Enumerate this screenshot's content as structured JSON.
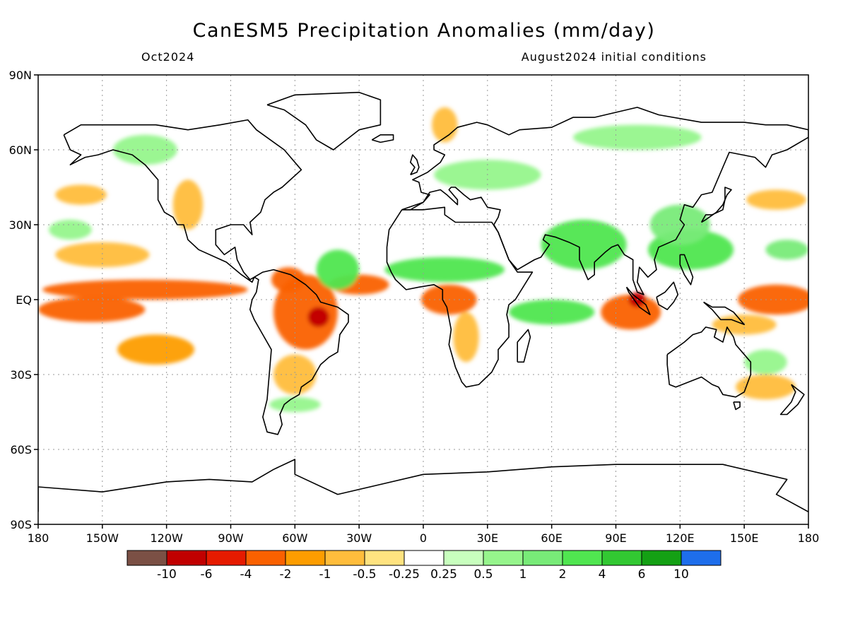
{
  "header": {
    "title": "CanESM5 Precipitation Anomalies (mm/day)",
    "valid_month": "Oct2024",
    "initial_conditions": "August2024 initial conditions"
  },
  "map": {
    "lon_range": [
      -180,
      180
    ],
    "lat_range": [
      -90,
      90
    ],
    "grid": true,
    "lat_ticks": [
      {
        "value": 90,
        "label": "90N"
      },
      {
        "value": 60,
        "label": "60N"
      },
      {
        "value": 30,
        "label": "30N"
      },
      {
        "value": 0,
        "label": "EQ"
      },
      {
        "value": -30,
        "label": "30S"
      },
      {
        "value": -60,
        "label": "60S"
      },
      {
        "value": -90,
        "label": "90S"
      }
    ],
    "lon_ticks": [
      {
        "value": -180,
        "label": "180"
      },
      {
        "value": -150,
        "label": "150W"
      },
      {
        "value": -120,
        "label": "120W"
      },
      {
        "value": -90,
        "label": "90W"
      },
      {
        "value": -60,
        "label": "60W"
      },
      {
        "value": -30,
        "label": "30W"
      },
      {
        "value": 0,
        "label": "0"
      },
      {
        "value": 30,
        "label": "30E"
      },
      {
        "value": 60,
        "label": "60E"
      },
      {
        "value": 90,
        "label": "90E"
      },
      {
        "value": 120,
        "label": "120E"
      },
      {
        "value": 150,
        "label": "150E"
      },
      {
        "value": 180,
        "label": "180"
      }
    ]
  },
  "colorbar": {
    "colors": [
      "#7b5045",
      "#c10000",
      "#e61b00",
      "#fa6100",
      "#fd9d00",
      "#ffbd3c",
      "#ffe380",
      "#ffffff",
      "#c8ffbe",
      "#96f58c",
      "#78eb78",
      "#50e650",
      "#32c832",
      "#14a014",
      "#1e6eeb"
    ],
    "labels": [
      "-10",
      "-6",
      "-4",
      "-2",
      "-1",
      "-0.5",
      "-0.25",
      "0.25",
      "0.5",
      "1",
      "2",
      "4",
      "6",
      "10"
    ]
  },
  "anomalies": [
    {
      "lon": -130,
      "lat": 4,
      "rx": 48,
      "ry": 4,
      "color": "#fa6100"
    },
    {
      "lon": -155,
      "lat": -4,
      "rx": 25,
      "ry": 5,
      "color": "#fa6100"
    },
    {
      "lon": -125,
      "lat": -20,
      "rx": 18,
      "ry": 6,
      "color": "#fd9d00"
    },
    {
      "lon": -150,
      "lat": 18,
      "rx": 22,
      "ry": 5,
      "color": "#ffbd3c"
    },
    {
      "lon": -160,
      "lat": 42,
      "rx": 12,
      "ry": 4,
      "color": "#ffbd3c"
    },
    {
      "lon": -55,
      "lat": -5,
      "rx": 15,
      "ry": 15,
      "color": "#fa6100"
    },
    {
      "lon": -49,
      "lat": -7,
      "rx": 5,
      "ry": 4,
      "color": "#c10000"
    },
    {
      "lon": -63,
      "lat": 8,
      "rx": 8,
      "ry": 5,
      "color": "#fa6100"
    },
    {
      "lon": -60,
      "lat": -30,
      "rx": 10,
      "ry": 8,
      "color": "#ffbd3c"
    },
    {
      "lon": -30,
      "lat": 6,
      "rx": 14,
      "ry": 4,
      "color": "#fa6100"
    },
    {
      "lon": -110,
      "lat": 38,
      "rx": 7,
      "ry": 10,
      "color": "#ffbd3c"
    },
    {
      "lon": 12,
      "lat": 0,
      "rx": 13,
      "ry": 6,
      "color": "#fa6100"
    },
    {
      "lon": 20,
      "lat": -15,
      "rx": 6,
      "ry": 10,
      "color": "#ffbd3c"
    },
    {
      "lon": 97,
      "lat": -5,
      "rx": 14,
      "ry": 7,
      "color": "#fa6100"
    },
    {
      "lon": 100,
      "lat": 0,
      "rx": 4,
      "ry": 3,
      "color": "#c10000"
    },
    {
      "lon": 165,
      "lat": 0,
      "rx": 18,
      "ry": 6,
      "color": "#fa6100"
    },
    {
      "lon": 150,
      "lat": -10,
      "rx": 15,
      "ry": 4,
      "color": "#ffbd3c"
    },
    {
      "lon": 160,
      "lat": -35,
      "rx": 14,
      "ry": 5,
      "color": "#ffbd3c"
    },
    {
      "lon": 165,
      "lat": 40,
      "rx": 14,
      "ry": 4,
      "color": "#ffbd3c"
    },
    {
      "lon": 10,
      "lat": 70,
      "rx": 6,
      "ry": 7,
      "color": "#ffbd3c"
    },
    {
      "lon": -40,
      "lat": 12,
      "rx": 10,
      "ry": 8,
      "color": "#50e650"
    },
    {
      "lon": 10,
      "lat": 12,
      "rx": 28,
      "ry": 5,
      "color": "#50e650"
    },
    {
      "lon": 75,
      "lat": 22,
      "rx": 20,
      "ry": 10,
      "color": "#50e650"
    },
    {
      "lon": 60,
      "lat": -5,
      "rx": 20,
      "ry": 5,
      "color": "#50e650"
    },
    {
      "lon": 125,
      "lat": 20,
      "rx": 20,
      "ry": 8,
      "color": "#50e650"
    },
    {
      "lon": 120,
      "lat": 30,
      "rx": 14,
      "ry": 8,
      "color": "#78eb78"
    },
    {
      "lon": 170,
      "lat": 20,
      "rx": 10,
      "ry": 4,
      "color": "#78eb78"
    },
    {
      "lon": -165,
      "lat": 28,
      "rx": 10,
      "ry": 4,
      "color": "#96f58c"
    },
    {
      "lon": 30,
      "lat": 50,
      "rx": 25,
      "ry": 6,
      "color": "#96f58c"
    },
    {
      "lon": 100,
      "lat": 65,
      "rx": 30,
      "ry": 5,
      "color": "#96f58c"
    },
    {
      "lon": -130,
      "lat": 60,
      "rx": 15,
      "ry": 6,
      "color": "#96f58c"
    },
    {
      "lon": 160,
      "lat": -25,
      "rx": 10,
      "ry": 5,
      "color": "#96f58c"
    },
    {
      "lon": -60,
      "lat": -42,
      "rx": 12,
      "ry": 3,
      "color": "#96f58c"
    }
  ],
  "coastlines": [
    [
      [
        -168,
        66
      ],
      [
        -160,
        70
      ],
      [
        -140,
        70
      ],
      [
        -125,
        70
      ],
      [
        -110,
        68
      ],
      [
        -95,
        70
      ],
      [
        -82,
        72
      ],
      [
        -78,
        68
      ],
      [
        -65,
        60
      ],
      [
        -60,
        55
      ],
      [
        -57,
        52
      ],
      [
        -66,
        45
      ],
      [
        -70,
        43
      ],
      [
        -74,
        40
      ],
      [
        -76,
        35
      ],
      [
        -81,
        31
      ],
      [
        -80,
        26
      ],
      [
        -82,
        28
      ],
      [
        -84,
        30
      ],
      [
        -90,
        30
      ],
      [
        -97,
        28
      ],
      [
        -97,
        22
      ],
      [
        -93,
        18
      ],
      [
        -88,
        21
      ],
      [
        -87,
        16
      ],
      [
        -84,
        11
      ],
      [
        -81,
        8
      ],
      [
        -79,
        9
      ],
      [
        -80,
        7
      ],
      [
        -85,
        10
      ],
      [
        -92,
        15
      ],
      [
        -105,
        20
      ],
      [
        -110,
        24
      ],
      [
        -112,
        30
      ],
      [
        -115,
        30
      ],
      [
        -117,
        33
      ],
      [
        -121,
        35
      ],
      [
        -124,
        40
      ],
      [
        -124,
        48
      ],
      [
        -130,
        54
      ],
      [
        -136,
        58
      ],
      [
        -145,
        60
      ],
      [
        -152,
        58
      ],
      [
        -158,
        57
      ],
      [
        -165,
        54
      ],
      [
        -160,
        58
      ],
      [
        -165,
        60
      ],
      [
        -168,
        66
      ]
    ],
    [
      [
        -79,
        9
      ],
      [
        -75,
        11
      ],
      [
        -70,
        12
      ],
      [
        -62,
        10
      ],
      [
        -55,
        6
      ],
      [
        -50,
        2
      ],
      [
        -48,
        -1
      ],
      [
        -40,
        -3
      ],
      [
        -35,
        -6
      ],
      [
        -35,
        -9
      ],
      [
        -39,
        -14
      ],
      [
        -40,
        -21
      ],
      [
        -44,
        -23
      ],
      [
        -48,
        -26
      ],
      [
        -52,
        -32
      ],
      [
        -57,
        -35
      ],
      [
        -58,
        -38
      ],
      [
        -62,
        -40
      ],
      [
        -65,
        -42
      ],
      [
        -67,
        -46
      ],
      [
        -66,
        -50
      ],
      [
        -68,
        -54
      ],
      [
        -73,
        -53
      ],
      [
        -75,
        -47
      ],
      [
        -73,
        -40
      ],
      [
        -72,
        -30
      ],
      [
        -71,
        -20
      ],
      [
        -75,
        -14
      ],
      [
        -79,
        -8
      ],
      [
        -81,
        -4
      ],
      [
        -80,
        0
      ],
      [
        -78,
        3
      ],
      [
        -77,
        8
      ],
      [
        -79,
        9
      ]
    ],
    [
      [
        -10,
        36
      ],
      [
        -6,
        36
      ],
      [
        0,
        39
      ],
      [
        3,
        42
      ],
      [
        -1,
        43
      ],
      [
        -2,
        47
      ],
      [
        -5,
        48
      ],
      [
        2,
        51
      ],
      [
        5,
        53
      ],
      [
        8,
        55
      ],
      [
        10,
        58
      ],
      [
        5,
        60
      ],
      [
        5,
        62
      ],
      [
        12,
        66
      ],
      [
        16,
        69
      ],
      [
        25,
        71
      ],
      [
        30,
        70
      ],
      [
        40,
        66
      ],
      [
        45,
        68
      ],
      [
        60,
        69
      ],
      [
        70,
        73
      ],
      [
        80,
        73
      ],
      [
        100,
        77
      ],
      [
        110,
        74
      ],
      [
        130,
        71
      ],
      [
        150,
        71
      ],
      [
        160,
        70
      ],
      [
        170,
        70
      ],
      [
        180,
        68
      ],
      [
        180,
        65
      ],
      [
        170,
        60
      ],
      [
        163,
        58
      ],
      [
        160,
        53
      ],
      [
        155,
        57
      ],
      [
        143,
        59
      ],
      [
        140,
        53
      ],
      [
        135,
        43
      ],
      [
        130,
        42
      ],
      [
        126,
        37
      ],
      [
        122,
        38
      ],
      [
        120,
        32
      ],
      [
        122,
        30
      ],
      [
        118,
        24
      ],
      [
        110,
        21
      ],
      [
        108,
        16
      ],
      [
        109,
        12
      ],
      [
        105,
        9
      ],
      [
        101,
        13
      ],
      [
        100,
        7
      ],
      [
        103,
        2
      ],
      [
        100,
        3
      ],
      [
        98,
        8
      ],
      [
        98,
        16
      ],
      [
        94,
        18
      ],
      [
        91,
        22
      ],
      [
        88,
        21
      ],
      [
        85,
        19
      ],
      [
        80,
        15
      ],
      [
        80,
        10
      ],
      [
        77,
        8
      ],
      [
        73,
        16
      ],
      [
        73,
        21
      ],
      [
        68,
        23
      ],
      [
        62,
        25
      ],
      [
        57,
        26
      ],
      [
        56,
        24
      ],
      [
        59,
        22
      ],
      [
        55,
        17
      ],
      [
        52,
        16
      ],
      [
        44,
        12
      ],
      [
        40,
        16
      ],
      [
        35,
        27
      ],
      [
        33,
        30
      ],
      [
        35,
        33
      ],
      [
        36,
        36
      ],
      [
        30,
        37
      ],
      [
        27,
        41
      ],
      [
        22,
        40
      ],
      [
        19,
        42
      ],
      [
        15,
        45
      ],
      [
        13,
        45
      ],
      [
        12,
        44
      ],
      [
        16,
        40
      ],
      [
        16,
        38
      ],
      [
        11,
        42
      ],
      [
        8,
        44
      ],
      [
        3,
        43
      ],
      [
        0,
        39
      ],
      [
        -10,
        36
      ]
    ],
    [
      [
        -10,
        36
      ],
      [
        -16,
        28
      ],
      [
        -17,
        21
      ],
      [
        -17,
        15
      ],
      [
        -15,
        11
      ],
      [
        -13,
        8
      ],
      [
        -8,
        4
      ],
      [
        -2,
        5
      ],
      [
        5,
        6
      ],
      [
        9,
        4
      ],
      [
        9,
        0
      ],
      [
        11,
        -3
      ],
      [
        13,
        -12
      ],
      [
        12,
        -18
      ],
      [
        15,
        -27
      ],
      [
        18,
        -33
      ],
      [
        20,
        -35
      ],
      [
        26,
        -34
      ],
      [
        32,
        -29
      ],
      [
        35,
        -24
      ],
      [
        35,
        -20
      ],
      [
        40,
        -15
      ],
      [
        40,
        -10
      ],
      [
        39,
        -6
      ],
      [
        40,
        -2
      ],
      [
        43,
        0
      ],
      [
        51,
        11
      ],
      [
        44,
        11
      ],
      [
        40,
        16
      ],
      [
        35,
        27
      ],
      [
        32,
        31
      ],
      [
        29,
        31
      ],
      [
        20,
        31
      ],
      [
        15,
        31
      ],
      [
        10,
        34
      ],
      [
        10,
        37
      ],
      [
        0,
        36
      ],
      [
        -10,
        36
      ]
    ],
    [
      [
        114,
        -22
      ],
      [
        114,
        -26
      ],
      [
        115,
        -34
      ],
      [
        118,
        -35
      ],
      [
        124,
        -33
      ],
      [
        130,
        -31
      ],
      [
        135,
        -34
      ],
      [
        138,
        -35
      ],
      [
        140,
        -38
      ],
      [
        146,
        -39
      ],
      [
        150,
        -37
      ],
      [
        153,
        -30
      ],
      [
        153,
        -25
      ],
      [
        150,
        -22
      ],
      [
        146,
        -18
      ],
      [
        145,
        -15
      ],
      [
        142,
        -11
      ],
      [
        140,
        -17
      ],
      [
        136,
        -15
      ],
      [
        137,
        -12
      ],
      [
        132,
        -11
      ],
      [
        130,
        -13
      ],
      [
        126,
        -14
      ],
      [
        122,
        -17
      ],
      [
        114,
        -22
      ]
    ],
    [
      [
        -180,
        -85
      ],
      [
        -180,
        -75
      ],
      [
        -150,
        -77
      ],
      [
        -120,
        -73
      ],
      [
        -100,
        -72
      ],
      [
        -80,
        -73
      ],
      [
        -70,
        -68
      ],
      [
        -60,
        -64
      ],
      [
        -60,
        -70
      ],
      [
        -40,
        -78
      ],
      [
        -20,
        -74
      ],
      [
        0,
        -70
      ],
      [
        30,
        -69
      ],
      [
        60,
        -67
      ],
      [
        90,
        -66
      ],
      [
        120,
        -66
      ],
      [
        140,
        -66
      ],
      [
        160,
        -70
      ],
      [
        170,
        -72
      ],
      [
        165,
        -78
      ],
      [
        180,
        -85
      ]
    ],
    [
      [
        -73,
        78
      ],
      [
        -60,
        82
      ],
      [
        -30,
        83
      ],
      [
        -20,
        80
      ],
      [
        -20,
        70
      ],
      [
        -30,
        68
      ],
      [
        -42,
        60
      ],
      [
        -50,
        64
      ],
      [
        -55,
        70
      ],
      [
        -65,
        76
      ],
      [
        -73,
        78
      ]
    ],
    [
      [
        -6,
        50
      ],
      [
        -3,
        51
      ],
      [
        -2,
        53
      ],
      [
        -3,
        56
      ],
      [
        -5,
        58
      ],
      [
        -6,
        55
      ],
      [
        -4,
        53
      ],
      [
        -6,
        50
      ]
    ],
    [
      [
        130,
        31
      ],
      [
        132,
        34
      ],
      [
        135,
        34
      ],
      [
        140,
        36
      ],
      [
        141,
        40
      ],
      [
        141,
        45
      ],
      [
        144,
        44
      ],
      [
        142,
        42
      ],
      [
        140,
        38
      ],
      [
        137,
        35
      ],
      [
        132,
        32
      ],
      [
        130,
        31
      ]
    ],
    [
      [
        131,
        -1
      ],
      [
        135,
        -3
      ],
      [
        141,
        -3
      ],
      [
        145,
        -5
      ],
      [
        150,
        -10
      ],
      [
        144,
        -8
      ],
      [
        139,
        -8
      ],
      [
        135,
        -4
      ],
      [
        131,
        -1
      ]
    ],
    [
      [
        109,
        1
      ],
      [
        110,
        -2
      ],
      [
        114,
        -4
      ],
      [
        117,
        -1
      ],
      [
        119,
        2
      ],
      [
        117,
        7
      ],
      [
        113,
        3
      ],
      [
        109,
        1
      ]
    ],
    [
      [
        95,
        5
      ],
      [
        98,
        2
      ],
      [
        104,
        -2
      ],
      [
        106,
        -6
      ],
      [
        101,
        -3
      ],
      [
        96,
        3
      ],
      [
        95,
        5
      ]
    ],
    [
      [
        44,
        -25
      ],
      [
        47,
        -25
      ],
      [
        50,
        -15
      ],
      [
        49,
        -12
      ],
      [
        44,
        -17
      ],
      [
        44,
        -25
      ]
    ],
    [
      [
        145,
        -41
      ],
      [
        148,
        -41
      ],
      [
        148,
        -43
      ],
      [
        146,
        -44
      ],
      [
        145,
        -41
      ]
    ],
    [
      [
        -24,
        64
      ],
      [
        -20,
        66
      ],
      [
        -14,
        66
      ],
      [
        -14,
        64
      ],
      [
        -20,
        63
      ],
      [
        -24,
        64
      ]
    ],
    [
      [
        172,
        -34
      ],
      [
        178,
        -38
      ],
      [
        175,
        -42
      ],
      [
        170,
        -46
      ],
      [
        167,
        -46
      ],
      [
        172,
        -41
      ],
      [
        174,
        -37
      ],
      [
        172,
        -34
      ]
    ],
    [
      [
        120,
        18
      ],
      [
        122,
        18
      ],
      [
        126,
        9
      ],
      [
        125,
        6
      ],
      [
        122,
        10
      ],
      [
        120,
        14
      ],
      [
        120,
        18
      ]
    ]
  ]
}
